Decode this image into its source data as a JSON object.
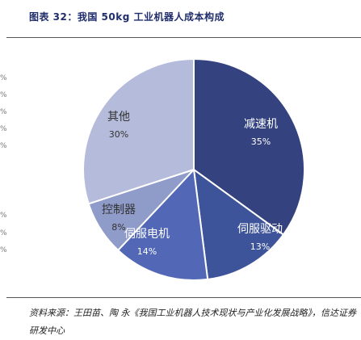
{
  "figure": {
    "title": "图表 32：我国 50kg 工业机器人成本构成",
    "source": "资料来源：王田苗、陶 永《我国工业机器人技术现状与产业化发展战略》，信达证券研发中心"
  },
  "edge_fragments": [
    "%",
    "%",
    "%",
    "%",
    "%",
    "%",
    "%",
    "%"
  ],
  "chart_data": {
    "type": "pie",
    "title": "",
    "slices": [
      {
        "label": "减速机",
        "value": 35,
        "value_label": "35%",
        "color": "#34437f",
        "label_color": "#ffffff"
      },
      {
        "label": "伺服驱动",
        "value": 13,
        "value_label": "13%",
        "color": "#3d539a",
        "label_color": "#ffffff"
      },
      {
        "label": "伺服电机",
        "value": 14,
        "value_label": "14%",
        "color": "#5268b6",
        "label_color": "#ffffff"
      },
      {
        "label": "控制器",
        "value": 8,
        "value_label": "8%",
        "color": "#8f9bc9",
        "label_color": "#333333"
      },
      {
        "label": "其他",
        "value": 30,
        "value_label": "30%",
        "color": "#b5bbda",
        "label_color": "#333333"
      }
    ],
    "start_angle_deg": 0,
    "direction": "clockwise",
    "legend": "none",
    "border_color": "#ffffff"
  }
}
